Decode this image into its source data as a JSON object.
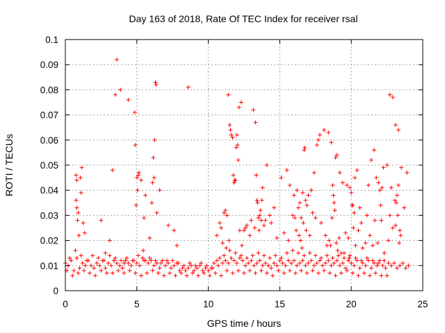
{
  "chart_data": {
    "type": "scatter",
    "title": "Day 163 of 2018, Rate Of TEC Index for receiver rsal",
    "xlabel": "GPS time / hours",
    "ylabel": "ROTI / TECUs",
    "xlim": [
      0,
      25
    ],
    "ylim": [
      0,
      0.1
    ],
    "xticks": [
      0,
      5,
      10,
      15,
      20,
      25
    ],
    "xtick_labels": [
      "0",
      "5",
      "10",
      "15",
      "20",
      "25"
    ],
    "yticks": [
      0,
      0.01,
      0.02,
      0.03,
      0.04,
      0.05,
      0.06,
      0.07,
      0.08,
      0.09,
      0.1
    ],
    "ytick_labels": [
      "0",
      "0.01",
      "0.02",
      "0.03",
      "0.04",
      "0.05",
      "0.06",
      "0.07",
      "0.08",
      "0.09",
      "0.1"
    ],
    "grid": true,
    "marker": "+",
    "color": "#ff0000",
    "series": [
      {
        "name": "ROTI",
        "x": [
          0.0,
          0.2,
          0.4,
          0.6,
          0.8,
          1.0,
          1.2,
          1.4,
          1.6,
          1.8,
          2.0,
          2.2,
          2.4,
          2.6,
          2.8,
          3.0,
          3.2,
          3.4,
          3.6,
          3.8,
          4.0,
          4.2,
          4.4,
          4.6,
          4.8,
          5.0,
          5.2,
          5.4,
          5.6,
          5.8,
          6.0,
          6.2,
          6.4,
          6.6,
          6.8,
          7.0,
          7.2,
          7.4,
          7.6,
          7.8,
          8.0,
          8.2,
          8.4,
          8.6,
          8.8,
          9.0,
          9.2,
          9.4,
          9.6,
          9.8,
          10.0,
          10.2,
          10.4,
          10.6,
          10.8,
          11.0,
          11.2,
          11.4,
          11.6,
          11.8,
          12.0,
          12.2,
          12.4,
          12.6,
          12.8,
          13.0,
          13.2,
          13.4,
          13.6,
          13.8,
          14.0,
          14.2,
          14.4,
          14.6,
          14.8,
          15.0,
          15.2,
          15.4,
          15.6,
          15.8,
          16.0,
          16.2,
          16.4,
          16.6,
          16.8,
          17.0,
          17.2,
          17.4,
          17.6,
          17.8,
          18.0,
          18.2,
          18.4,
          18.6,
          18.8,
          19.0,
          19.2,
          19.4,
          19.6,
          19.8,
          20.0,
          20.2,
          20.4,
          20.6,
          20.8,
          21.0,
          21.2,
          21.4,
          21.6,
          21.8,
          22.0,
          22.2,
          22.4,
          22.6,
          22.8,
          23.0,
          23.2,
          23.4,
          23.6,
          23.8,
          24.0,
          0.1,
          0.3,
          0.5,
          0.7,
          0.9,
          1.1,
          1.3,
          1.5,
          1.7,
          1.9,
          2.1,
          2.3,
          2.5,
          2.7,
          2.9,
          3.1,
          3.3,
          3.5,
          3.7,
          3.9,
          4.1,
          4.3,
          4.5,
          4.7,
          4.9,
          5.1,
          5.3,
          5.5,
          5.7,
          5.9,
          6.1,
          6.3,
          6.5,
          6.7,
          6.9,
          7.1,
          7.3,
          7.5,
          7.7,
          7.9,
          8.1,
          8.3,
          8.5,
          8.7,
          8.9,
          9.1,
          9.3,
          9.5,
          9.7,
          9.9,
          10.1,
          10.3,
          10.5,
          10.7,
          10.9,
          11.1,
          11.3,
          11.5,
          11.7,
          11.9,
          12.1,
          12.3,
          12.5,
          12.7,
          12.9,
          13.1,
          13.3,
          13.5,
          13.7,
          13.9,
          14.1,
          14.3,
          14.5,
          14.7,
          14.9,
          15.1,
          15.3,
          15.5,
          15.7,
          15.9,
          16.1,
          16.3,
          16.5,
          16.7,
          16.9,
          17.1,
          17.3,
          17.5,
          17.7,
          17.9,
          18.1,
          18.3,
          18.5,
          18.7,
          18.9,
          19.1,
          19.3,
          19.5,
          19.7,
          19.9,
          20.1,
          20.3,
          20.5,
          20.7,
          20.9,
          21.1,
          21.3,
          21.5,
          21.7,
          21.9,
          22.1,
          22.3,
          22.5,
          22.7,
          22.9,
          23.1,
          23.3,
          23.5,
          23.7,
          23.9,
          0.75,
          0.8,
          0.75,
          0.8,
          0.85,
          0.9,
          1.05,
          1.1,
          1.15,
          3.3,
          3.5,
          3.6,
          3.85,
          4.4,
          4.85,
          4.9,
          4.95,
          5.0,
          5.05,
          5.1,
          5.15,
          5.3,
          5.6,
          5.9,
          6.1,
          6.15,
          6.2,
          6.25,
          6.3,
          6.35,
          8.6,
          11.4,
          11.5,
          11.55,
          11.6,
          11.7,
          11.75,
          11.8,
          11.85,
          11.9,
          11.95,
          12.0,
          12.05,
          12.1,
          12.15,
          12.3,
          13.15,
          13.3,
          13.35,
          13.4,
          13.45,
          13.5,
          13.55,
          13.6,
          13.65,
          13.7,
          13.75,
          13.8,
          14.1,
          15.1,
          15.5,
          15.7,
          16.0,
          16.2,
          16.3,
          16.4,
          16.6,
          16.7,
          16.75,
          16.8,
          16.9,
          17.0,
          17.2,
          17.4,
          17.6,
          17.7,
          17.8,
          18.1,
          18.4,
          18.6,
          18.7,
          18.75,
          18.8,
          18.85,
          18.9,
          19.0,
          19.2,
          19.4,
          19.7,
          19.9,
          20.0,
          20.05,
          20.1,
          20.15,
          20.2,
          20.25,
          20.4,
          20.6,
          21.2,
          21.4,
          21.6,
          21.75,
          21.9,
          22.0,
          22.05,
          22.1,
          22.15,
          22.25,
          22.5,
          22.8,
          23.05,
          23.1,
          23.15,
          23.2,
          23.25,
          23.3,
          11.2,
          11.3,
          11.1,
          12.5,
          12.7,
          13.0,
          13.9,
          14.3,
          14.6,
          15.9,
          16.5,
          17.1,
          17.5,
          18.3,
          19.5,
          19.8,
          20.8,
          21.0,
          22.7,
          23.4,
          0.95,
          1.25,
          1.35,
          2.5,
          2.8,
          3.1,
          3.4,
          4.1,
          5.45,
          5.5,
          6.05,
          6.4,
          6.6,
          7.2,
          7.6,
          7.8,
          10.6,
          10.8,
          10.9,
          11.0,
          11.25,
          11.45,
          12.2,
          12.35,
          12.6,
          12.9,
          13.25,
          14.0,
          14.4,
          14.8,
          15.3,
          15.6,
          16.05,
          16.15,
          16.35,
          16.45,
          16.55,
          16.65,
          16.85,
          17.3,
          17.9,
          18.2,
          18.45,
          18.55,
          18.65,
          18.95,
          19.05,
          19.15,
          19.3,
          19.6,
          19.85,
          20.3,
          20.5,
          20.7,
          21.1,
          21.3,
          21.5,
          21.65,
          21.85,
          22.3,
          22.6,
          22.9,
          23.35,
          23.45
        ],
        "y": [
          0.011,
          0.01,
          0.012,
          0.008,
          0.013,
          0.009,
          0.011,
          0.01,
          0.012,
          0.01,
          0.009,
          0.011,
          0.01,
          0.012,
          0.009,
          0.011,
          0.01,
          0.012,
          0.011,
          0.01,
          0.009,
          0.012,
          0.011,
          0.01,
          0.012,
          0.011,
          0.01,
          0.013,
          0.012,
          0.011,
          0.012,
          0.01,
          0.011,
          0.009,
          0.012,
          0.01,
          0.011,
          0.009,
          0.01,
          0.011,
          0.008,
          0.009,
          0.008,
          0.009,
          0.01,
          0.008,
          0.009,
          0.01,
          0.008,
          0.009,
          0.008,
          0.009,
          0.011,
          0.012,
          0.013,
          0.011,
          0.012,
          0.011,
          0.013,
          0.012,
          0.011,
          0.013,
          0.012,
          0.01,
          0.011,
          0.012,
          0.01,
          0.011,
          0.012,
          0.01,
          0.011,
          0.01,
          0.009,
          0.011,
          0.01,
          0.012,
          0.011,
          0.01,
          0.012,
          0.011,
          0.012,
          0.01,
          0.011,
          0.012,
          0.01,
          0.011,
          0.012,
          0.01,
          0.011,
          0.012,
          0.01,
          0.011,
          0.012,
          0.01,
          0.011,
          0.012,
          0.01,
          0.011,
          0.009,
          0.012,
          0.011,
          0.01,
          0.012,
          0.009,
          0.011,
          0.01,
          0.012,
          0.009,
          0.011,
          0.01,
          0.012,
          0.01,
          0.009,
          0.011,
          0.01,
          0.011,
          0.009,
          0.01,
          0.011,
          0.009,
          0.01,
          0.008,
          0.013,
          0.006,
          0.016,
          0.007,
          0.014,
          0.008,
          0.012,
          0.007,
          0.014,
          0.006,
          0.013,
          0.008,
          0.012,
          0.007,
          0.014,
          0.007,
          0.013,
          0.008,
          0.012,
          0.007,
          0.013,
          0.008,
          0.012,
          0.007,
          0.014,
          0.006,
          0.012,
          0.007,
          0.013,
          0.008,
          0.012,
          0.007,
          0.011,
          0.006,
          0.012,
          0.007,
          0.012,
          0.006,
          0.011,
          0.007,
          0.01,
          0.006,
          0.011,
          0.007,
          0.01,
          0.006,
          0.011,
          0.007,
          0.01,
          0.006,
          0.009,
          0.007,
          0.01,
          0.006,
          0.014,
          0.008,
          0.016,
          0.007,
          0.015,
          0.008,
          0.014,
          0.007,
          0.013,
          0.008,
          0.014,
          0.007,
          0.015,
          0.008,
          0.014,
          0.007,
          0.013,
          0.006,
          0.014,
          0.008,
          0.013,
          0.007,
          0.015,
          0.008,
          0.016,
          0.007,
          0.015,
          0.008,
          0.014,
          0.007,
          0.015,
          0.008,
          0.014,
          0.007,
          0.013,
          0.008,
          0.014,
          0.007,
          0.013,
          0.006,
          0.014,
          0.007,
          0.013,
          0.008,
          0.014,
          0.007,
          0.013,
          0.006,
          0.012,
          0.007,
          0.013,
          0.006,
          0.012,
          0.007,
          0.011,
          0.006,
          0.012,
          0.006,
          0.078,
          0.077,
          0.066,
          0.064,
          0.049,
          0.033,
          0.047,
          0.046,
          0.044,
          0.036,
          0.033,
          0.028,
          0.031,
          0.045,
          0.039,
          0.049,
          0.048,
          0.078,
          0.092,
          0.08,
          0.076,
          0.071,
          0.058,
          0.034,
          0.045,
          0.04,
          0.046,
          0.047,
          0.044,
          0.038,
          0.021,
          0.043,
          0.053,
          0.045,
          0.06,
          0.083,
          0.082,
          0.081,
          0.078,
          0.066,
          0.064,
          0.062,
          0.061,
          0.046,
          0.043,
          0.044,
          0.044,
          0.057,
          0.062,
          0.058,
          0.052,
          0.073,
          0.075,
          0.072,
          0.067,
          0.046,
          0.036,
          0.035,
          0.029,
          0.024,
          0.03,
          0.032,
          0.028,
          0.036,
          0.041,
          0.05,
          0.045,
          0.048,
          0.042,
          0.038,
          0.04,
          0.033,
          0.035,
          0.039,
          0.056,
          0.057,
          0.036,
          0.034,
          0.038,
          0.04,
          0.047,
          0.058,
          0.06,
          0.062,
          0.064,
          0.063,
          0.059,
          0.042,
          0.038,
          0.035,
          0.032,
          0.053,
          0.054,
          0.047,
          0.043,
          0.042,
          0.041,
          0.039,
          0.034,
          0.034,
          0.025,
          0.031,
          0.045,
          0.048,
          0.033,
          0.042,
          0.052,
          0.056,
          0.045,
          0.043,
          0.04,
          0.034,
          0.028,
          0.041,
          0.049,
          0.05,
          0.041,
          0.036,
          0.026,
          0.035,
          0.038,
          0.03,
          0.042,
          0.032,
          0.03,
          0.031,
          0.024,
          0.026,
          0.028,
          0.026,
          0.03,
          0.033,
          0.03,
          0.029,
          0.022,
          0.029,
          0.018,
          0.015,
          0.021,
          0.017,
          0.019,
          0.03,
          0.024,
          0.022,
          0.027,
          0.023,
          0.028,
          0.015,
          0.02,
          0.012,
          0.011,
          0.016,
          0.029,
          0.035,
          0.031,
          0.04,
          0.026,
          0.024,
          0.018,
          0.022,
          0.027,
          0.025,
          0.019,
          0.017,
          0.02,
          0.024,
          0.018,
          0.025,
          0.022,
          0.025,
          0.028,
          0.027,
          0.021,
          0.023,
          0.02,
          0.029,
          0.024,
          0.022,
          0.02,
          0.017,
          0.027,
          0.024,
          0.031,
          0.027,
          0.022,
          0.02,
          0.018,
          0.029,
          0.019,
          0.016,
          0.021,
          0.015,
          0.023,
          0.013,
          0.018,
          0.024,
          0.027,
          0.03,
          0.022,
          0.018,
          0.028,
          0.019,
          0.015,
          0.02,
          0.025,
          0.019,
          0.022
        ]
      }
    ]
  }
}
